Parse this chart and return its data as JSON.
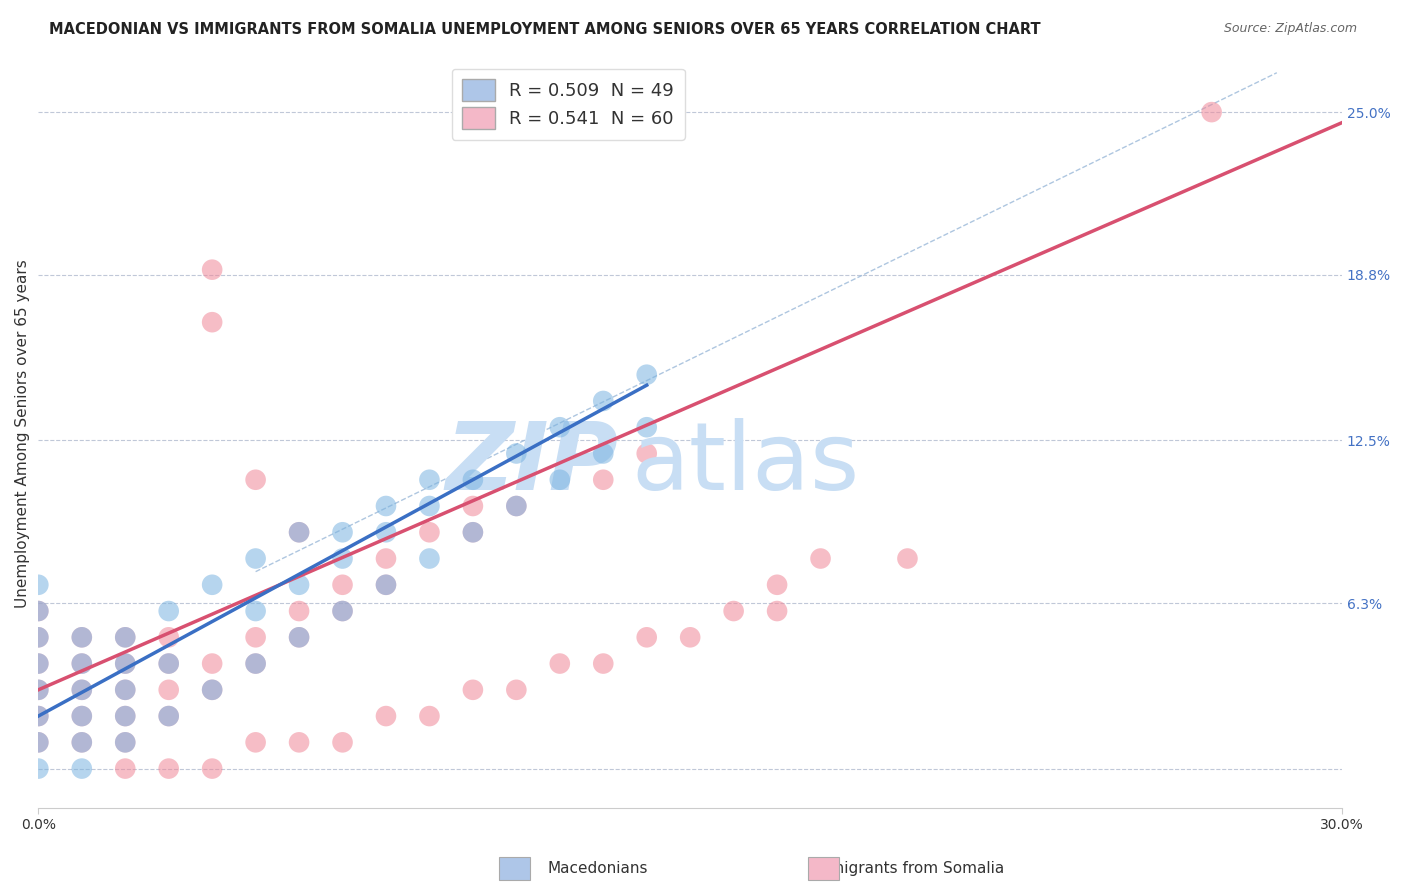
{
  "title": "MACEDONIAN VS IMMIGRANTS FROM SOMALIA UNEMPLOYMENT AMONG SENIORS OVER 65 YEARS CORRELATION CHART",
  "source": "Source: ZipAtlas.com",
  "ylabel": "Unemployment Among Seniors over 65 years",
  "xmin": 0.0,
  "xmax": 0.3,
  "ymin": -0.015,
  "ymax": 0.27,
  "y_tick_labels_right": [
    "25.0%",
    "18.8%",
    "12.5%",
    "6.3%"
  ],
  "y_tick_positions_right": [
    0.25,
    0.188,
    0.125,
    0.063
  ],
  "legend_label1": "R = 0.509  N = 49",
  "legend_label2": "R = 0.541  N = 60",
  "legend_color1": "#aec6e8",
  "legend_color2": "#f4b8c8",
  "macedonian_color": "#7ab3e0",
  "somalia_color": "#f08898",
  "watermark_zip_color": "#c8def4",
  "watermark_atlas_color": "#c8def4",
  "reg_blue_color": "#3a6fc4",
  "reg_pink_color": "#d85070",
  "diag_color": "#9ab8d8",
  "mac_scatter_x": [
    0.0,
    0.0,
    0.0,
    0.0,
    0.0,
    0.0,
    0.0,
    0.0,
    0.01,
    0.01,
    0.01,
    0.01,
    0.01,
    0.01,
    0.02,
    0.02,
    0.02,
    0.02,
    0.02,
    0.03,
    0.03,
    0.03,
    0.04,
    0.04,
    0.05,
    0.05,
    0.06,
    0.06,
    0.07,
    0.07,
    0.08,
    0.08,
    0.09,
    0.09,
    0.1,
    0.11,
    0.12,
    0.13,
    0.14,
    0.05,
    0.06,
    0.07,
    0.08,
    0.09,
    0.1,
    0.11,
    0.12,
    0.13,
    0.14
  ],
  "mac_scatter_y": [
    0.0,
    0.01,
    0.02,
    0.03,
    0.04,
    0.05,
    0.06,
    0.07,
    0.0,
    0.01,
    0.02,
    0.03,
    0.04,
    0.05,
    0.01,
    0.02,
    0.03,
    0.04,
    0.05,
    0.02,
    0.04,
    0.06,
    0.03,
    0.07,
    0.04,
    0.08,
    0.05,
    0.09,
    0.06,
    0.09,
    0.07,
    0.1,
    0.08,
    0.11,
    0.09,
    0.1,
    0.11,
    0.12,
    0.13,
    0.06,
    0.07,
    0.08,
    0.09,
    0.1,
    0.11,
    0.12,
    0.13,
    0.14,
    0.15
  ],
  "som_scatter_x": [
    0.0,
    0.0,
    0.0,
    0.0,
    0.0,
    0.0,
    0.01,
    0.01,
    0.01,
    0.01,
    0.01,
    0.02,
    0.02,
    0.02,
    0.02,
    0.02,
    0.03,
    0.03,
    0.03,
    0.03,
    0.04,
    0.04,
    0.04,
    0.04,
    0.05,
    0.05,
    0.05,
    0.06,
    0.06,
    0.06,
    0.07,
    0.07,
    0.08,
    0.08,
    0.09,
    0.1,
    0.1,
    0.11,
    0.13,
    0.14,
    0.17,
    0.18,
    0.2,
    0.27,
    0.02,
    0.03,
    0.04,
    0.05,
    0.06,
    0.07,
    0.08,
    0.09,
    0.1,
    0.11,
    0.12,
    0.13,
    0.14,
    0.15,
    0.16,
    0.17
  ],
  "som_scatter_y": [
    0.01,
    0.02,
    0.03,
    0.04,
    0.05,
    0.06,
    0.01,
    0.02,
    0.03,
    0.04,
    0.05,
    0.01,
    0.02,
    0.03,
    0.04,
    0.05,
    0.02,
    0.03,
    0.04,
    0.05,
    0.03,
    0.04,
    0.17,
    0.19,
    0.04,
    0.05,
    0.11,
    0.05,
    0.06,
    0.09,
    0.06,
    0.07,
    0.07,
    0.08,
    0.09,
    0.09,
    0.1,
    0.1,
    0.11,
    0.12,
    0.07,
    0.08,
    0.08,
    0.25,
    0.0,
    0.0,
    0.0,
    0.01,
    0.01,
    0.01,
    0.02,
    0.02,
    0.03,
    0.03,
    0.04,
    0.04,
    0.05,
    0.05,
    0.06,
    0.06
  ],
  "blue_line_x": [
    0.0,
    0.14
  ],
  "blue_line_y_intercept": 0.02,
  "blue_line_slope": 0.9,
  "pink_line_x": [
    0.0,
    0.3
  ],
  "pink_line_y_intercept": 0.03,
  "pink_line_slope": 0.72,
  "diag_line_x1": 0.05,
  "diag_line_y1": 0.075,
  "diag_line_x2": 0.285,
  "diag_line_y2": 0.265
}
